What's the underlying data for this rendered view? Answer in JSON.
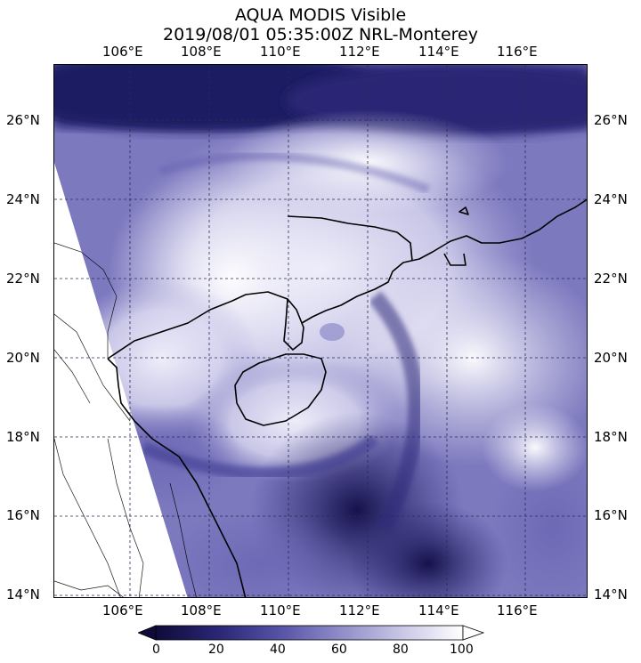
{
  "title": {
    "line1": "AQUA MODIS Visible",
    "line2": "2019/08/01 05:35:00Z NRL-Monterey"
  },
  "axes": {
    "longitudes": [
      "106°E",
      "108°E",
      "110°E",
      "112°E",
      "114°E",
      "116°E"
    ],
    "latitudes": [
      "26°N",
      "24°N",
      "22°N",
      "20°N",
      "18°N",
      "16°N",
      "14°N"
    ],
    "lon_range": [
      104.1,
      117.5
    ],
    "lat_range": [
      13.9,
      27.4
    ],
    "grid": true
  },
  "colorbar": {
    "ticks": [
      "0",
      "20",
      "40",
      "60",
      "80",
      "100"
    ],
    "range": [
      0,
      100
    ],
    "colors": [
      "#0e0b3a",
      "#2a2675",
      "#5551a5",
      "#8f8cc8",
      "#c8c6e6",
      "#ffffff"
    ]
  },
  "colors": {
    "ocean_dark": "#15124f",
    "cloud_bright": "#f4f3fc",
    "no_data": "#ffffff",
    "coastline": "#000000"
  }
}
